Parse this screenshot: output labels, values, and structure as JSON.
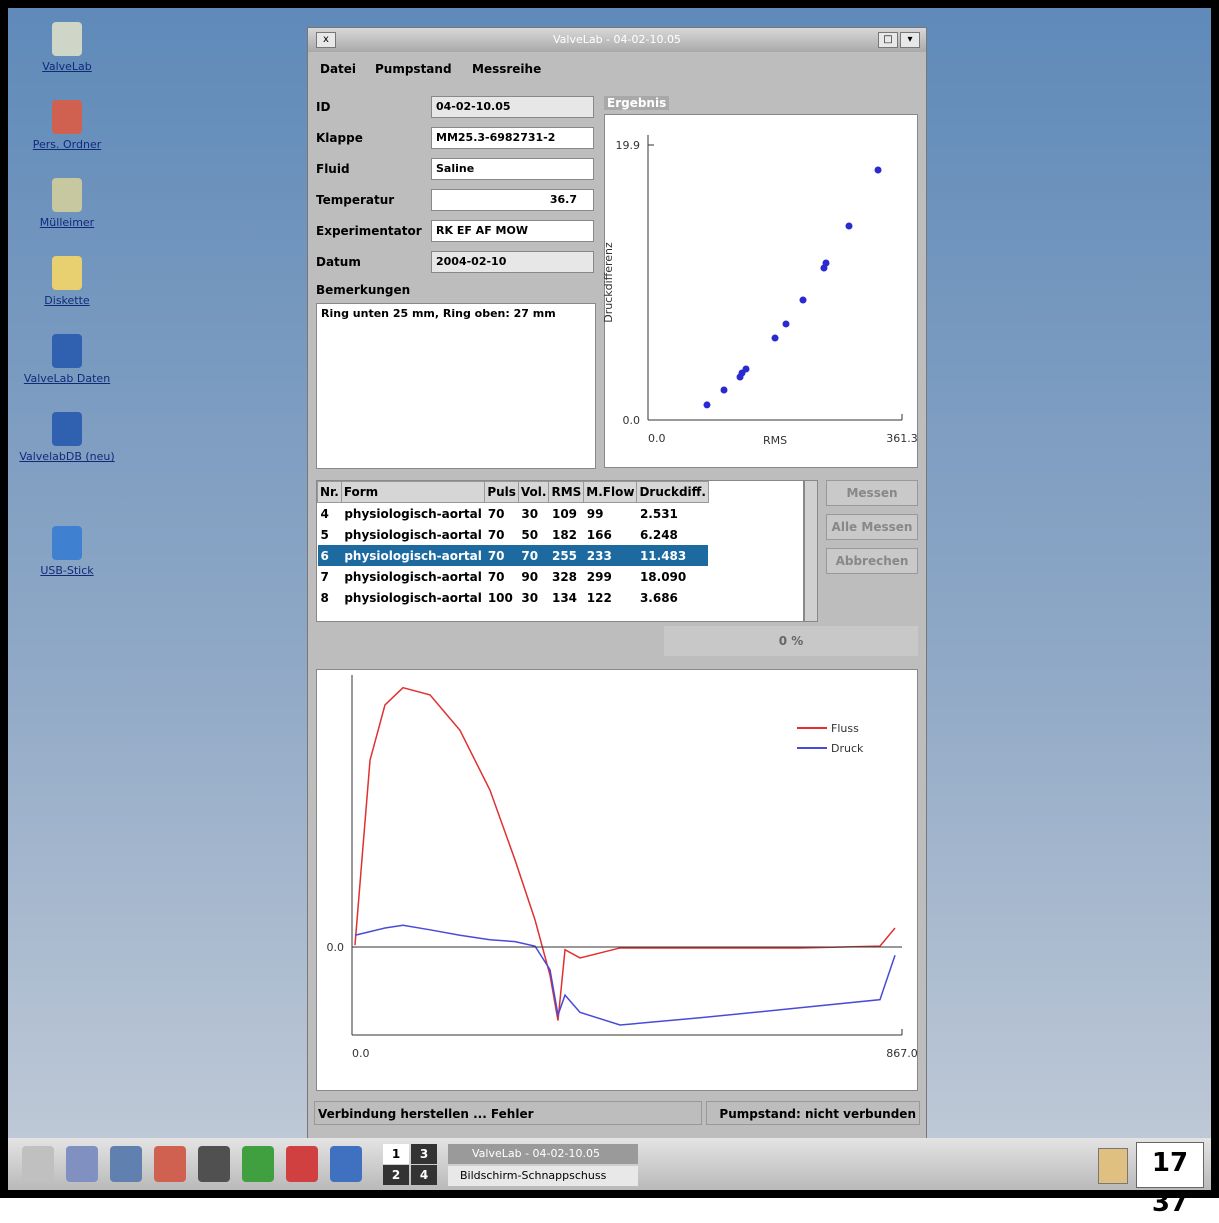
{
  "desktop": {
    "icons": [
      "ValveLab",
      "Pers. Ordner",
      "Mülleimer",
      "Diskette",
      "ValveLab Daten",
      "ValvelabDB (neu)",
      "USB-Stick"
    ]
  },
  "window": {
    "title": "ValveLab - 04-02-10.05",
    "menu": [
      "Datei",
      "Pumpstand",
      "Messreihe"
    ],
    "fields": [
      {
        "label": "ID",
        "value": "04-02-10.05"
      },
      {
        "label": "Klappe",
        "value": "MM25.3-6982731-2"
      },
      {
        "label": "Fluid",
        "value": "Saline"
      },
      {
        "label": "Temperatur",
        "value": "36.7"
      },
      {
        "label": "Experimentator",
        "value": "RK EF AF MOW"
      },
      {
        "label": "Datum",
        "value": "2004-02-10"
      }
    ],
    "remarks_label": "Bemerkungen",
    "remarks": "Ring unten 25 mm, Ring oben: 27 mm",
    "result_group": "Ergebnis",
    "table": {
      "headers": [
        "Nr.",
        "Form",
        "Puls",
        "Vol.",
        "RMS",
        "M.Flow",
        "Druckdiff."
      ],
      "rows": [
        [
          "4",
          "physiologisch-aortal",
          "70",
          "30",
          "109",
          "99",
          "2.531"
        ],
        [
          "5",
          "physiologisch-aortal",
          "70",
          "50",
          "182",
          "166",
          "6.248"
        ],
        [
          "6",
          "physiologisch-aortal",
          "70",
          "70",
          "255",
          "233",
          "11.483"
        ],
        [
          "7",
          "physiologisch-aortal",
          "70",
          "90",
          "328",
          "299",
          "18.090"
        ],
        [
          "8",
          "physiologisch-aortal",
          "100",
          "30",
          "134",
          "122",
          "3.686"
        ]
      ],
      "selected_row": 2
    },
    "buttons": [
      "Messen",
      "Alle Messen",
      "Abbrechen"
    ],
    "progress": "0 %",
    "status": [
      "Verbindung herstellen ... Fehler",
      "Pumpstand: nicht verbunden"
    ]
  },
  "charts": [
    {
      "type": "scatter",
      "ylabel": "Druckdifferenz",
      "xlabel": "RMS",
      "color": "#2a2ad0",
      "x": [
        83.9,
        108.1,
        130.9,
        133.7,
        139.4,
        180.7,
        196.3,
        220.5,
        250.3,
        253.2,
        285.9,
        327.2
      ],
      "values": [
        1.09,
        2.17,
        3.11,
        3.4,
        3.69,
        5.93,
        6.95,
        8.68,
        11.0,
        11.36,
        14.04,
        18.09
      ],
      "xlim": [
        0,
        361.3
      ],
      "ylim": [
        0,
        19.9
      ],
      "xticks": [
        {
          "value": 0,
          "label": "0.0"
        },
        361.3
      ],
      "yticks": [
        {
          "value": 0,
          "label": "0.0"
        },
        19.9
      ]
    },
    {
      "type": "line",
      "x": [
        4.7,
        28.4,
        52.0,
        80.4,
        123.0,
        170.2,
        217.5,
        257.0,
        288.5,
        312.1,
        324.7,
        335.8,
        359.4,
        422.5,
        548.6,
        706.2,
        832.3,
        856.0
      ],
      "series": [
        {
          "name": "Fluss",
          "color": "#e03030",
          "values": [
            0.02,
            2.06,
            2.67,
            2.86,
            2.78,
            2.39,
            1.73,
            0.96,
            0.3,
            -0.31,
            -0.81,
            -0.03,
            -0.12,
            -0.01,
            -0.01,
            -0.01,
            0.01,
            0.21
          ]
        },
        {
          "name": "Druck",
          "color": "#4a4ad8",
          "values": [
            0.13,
            0.17,
            0.21,
            0.24,
            0.19,
            0.13,
            0.08,
            0.06,
            0.01,
            -0.25,
            -0.75,
            -0.53,
            -0.72,
            -0.86,
            -0.78,
            -0.67,
            -0.58,
            -0.09
          ]
        }
      ],
      "xlim": [
        0,
        867
      ],
      "ylim": [
        -0.97,
        3
      ],
      "xticks": [
        {
          "value": 0,
          "label": "0.0"
        },
        {
          "value": 867,
          "label": "867.0"
        }
      ],
      "yticks": [
        {
          "value": 0,
          "label": "0.0"
        }
      ]
    }
  ],
  "taskbar": {
    "pager": [
      "1",
      "3",
      "2",
      "4"
    ],
    "tasks": [
      "ValveLab - 04-02-10.05",
      "Bildschirm-Schnappschuss"
    ],
    "clock": "17 37"
  }
}
